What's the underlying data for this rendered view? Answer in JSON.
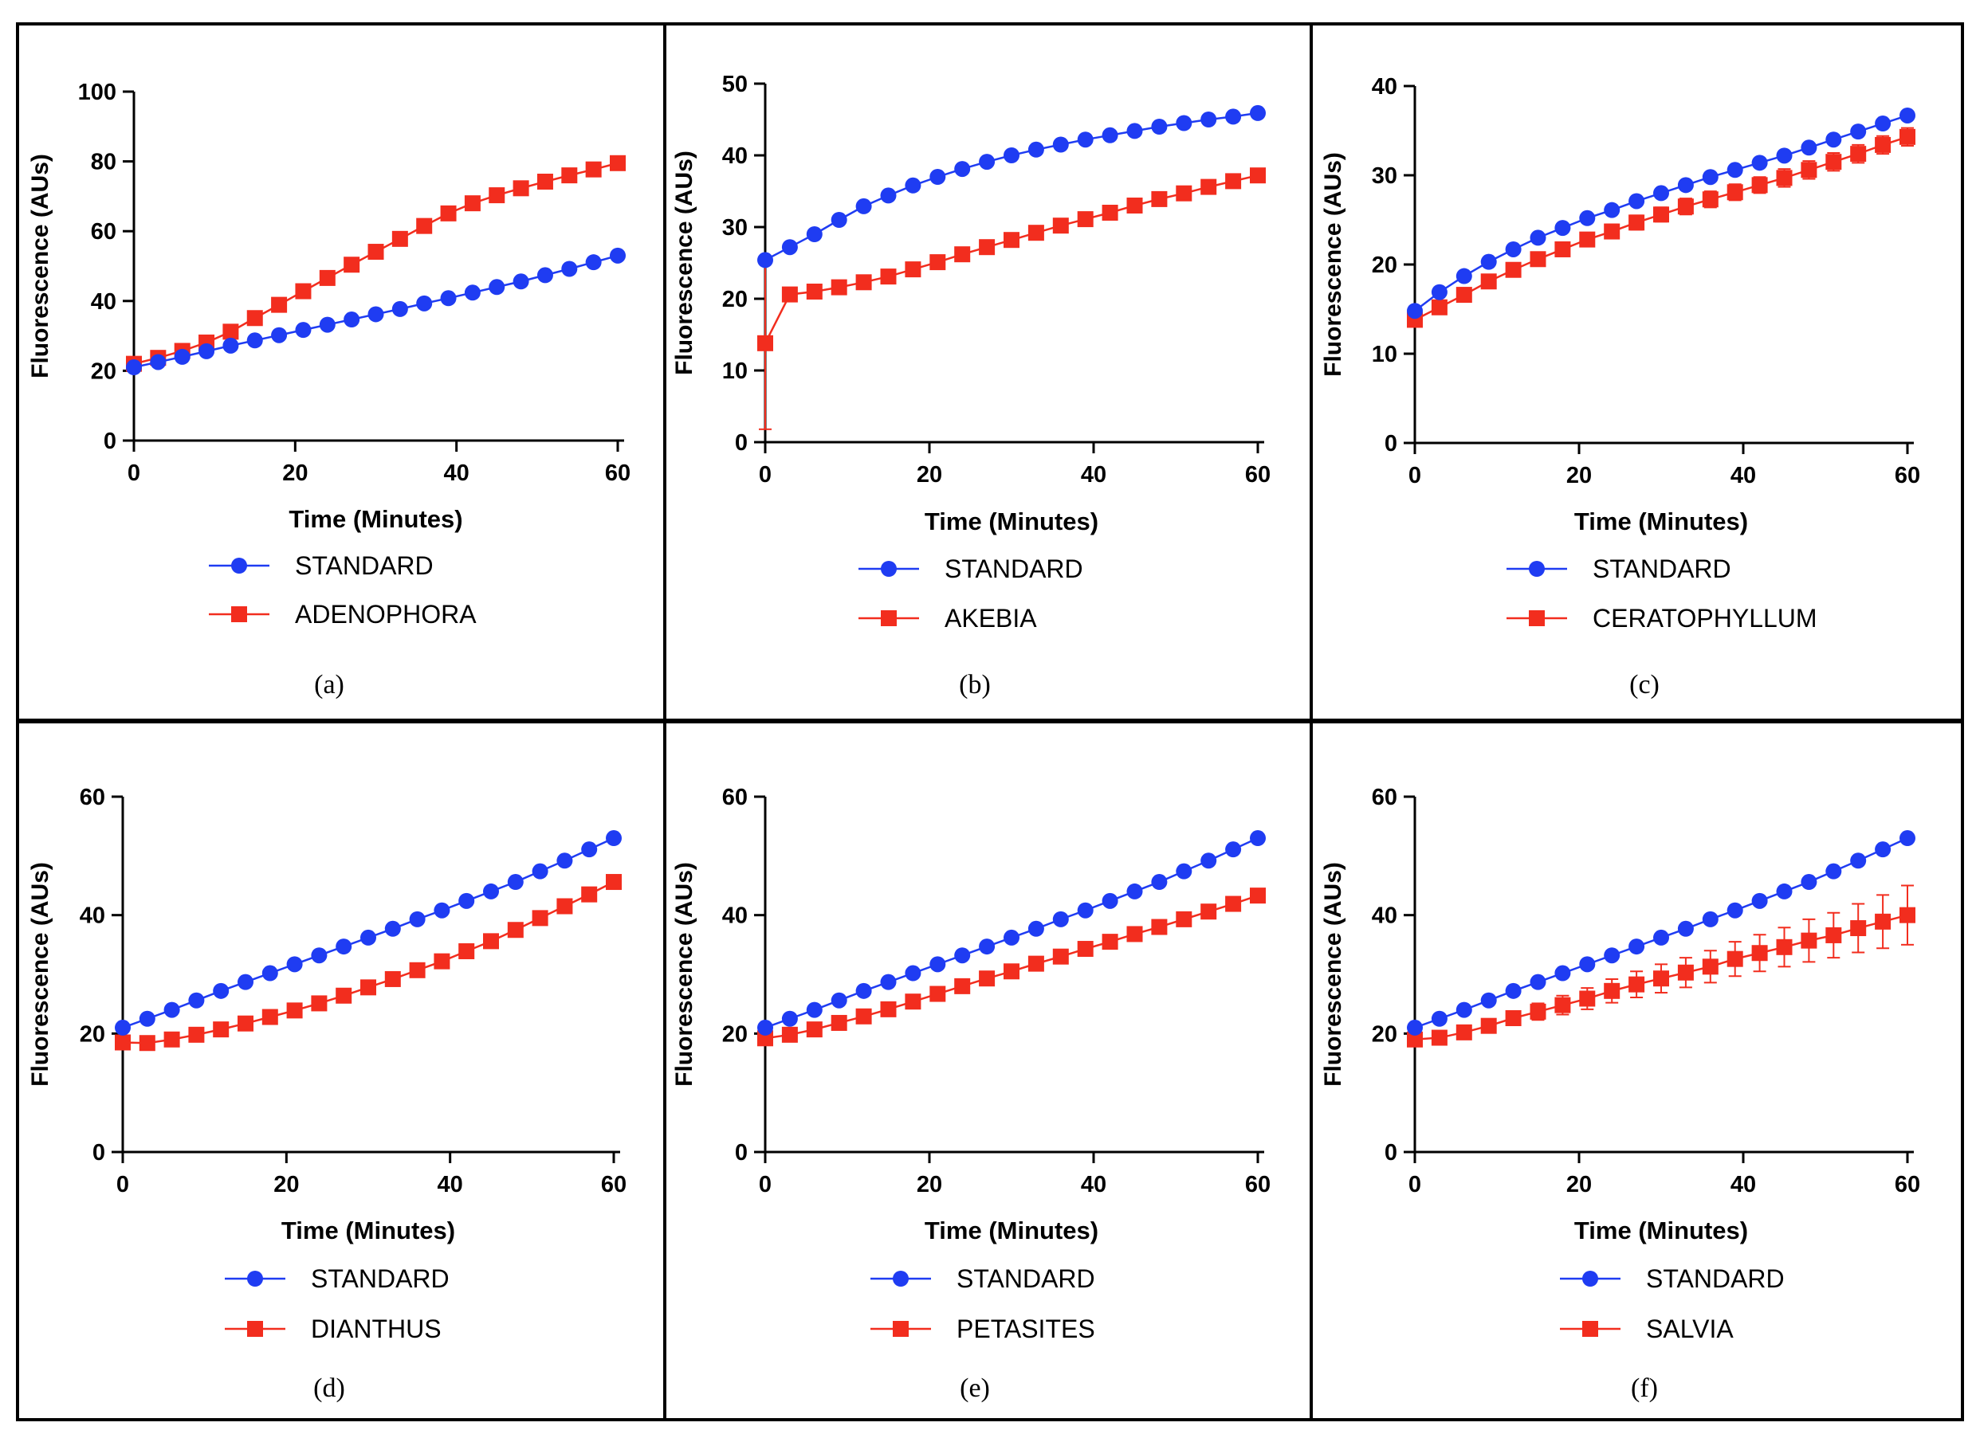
{
  "colors": {
    "standard": "#1f3cf2",
    "sample": "#f22d1e",
    "frame": "#000000"
  },
  "chart_data": [
    {
      "type": "line",
      "panel_label": "(a)",
      "xlabel": "Time (Minutes)",
      "ylabel": "Fluorescence (AUs)",
      "xlim": [
        0,
        60
      ],
      "ylim": [
        0,
        100
      ],
      "xticks": [
        "0",
        "20",
        "40",
        "60"
      ],
      "yticks": [
        "0",
        "20",
        "40",
        "60",
        "80",
        "100"
      ],
      "x": [
        0,
        3,
        6,
        9,
        12,
        15,
        18,
        21,
        24,
        27,
        30,
        33,
        36,
        39,
        42,
        45,
        48,
        51,
        54,
        57,
        60
      ],
      "series": [
        {
          "name": "STANDARD",
          "marker": "circle",
          "color": "#1f3cf2",
          "values": [
            21,
            22.5,
            24,
            25.6,
            27.2,
            28.7,
            30.2,
            31.7,
            33.2,
            34.7,
            36.2,
            37.7,
            39.3,
            40.8,
            42.4,
            44,
            45.6,
            47.4,
            49.2,
            51.1,
            53
          ]
        },
        {
          "name": "ADENOPHORA",
          "marker": "square",
          "color": "#f22d1e",
          "values": [
            22,
            23.7,
            25.7,
            28.1,
            31.2,
            35.1,
            38.9,
            42.8,
            46.6,
            50.4,
            54.1,
            57.8,
            61.5,
            65.1,
            68,
            70.3,
            72.3,
            74.2,
            76,
            77.7,
            79.5
          ]
        }
      ]
    },
    {
      "type": "line",
      "panel_label": "(b)",
      "xlabel": "Time (Minutes)",
      "ylabel": "Fluorescence (AUs)",
      "xlim": [
        0,
        60
      ],
      "ylim": [
        0,
        50
      ],
      "xticks": [
        "0",
        "20",
        "40",
        "60"
      ],
      "yticks": [
        "0",
        "10",
        "20",
        "30",
        "40",
        "50"
      ],
      "x": [
        0,
        3,
        6,
        9,
        12,
        15,
        18,
        21,
        24,
        27,
        30,
        33,
        36,
        39,
        42,
        45,
        48,
        51,
        54,
        57,
        60
      ],
      "series": [
        {
          "name": "STANDARD",
          "marker": "circle",
          "color": "#1f3cf2",
          "values": [
            25.4,
            27.2,
            29,
            31,
            32.9,
            34.4,
            35.8,
            37,
            38.1,
            39.1,
            40,
            40.8,
            41.5,
            42.2,
            42.8,
            43.4,
            44,
            44.5,
            45,
            45.4,
            45.9
          ]
        },
        {
          "name": "AKEBIA",
          "marker": "square",
          "color": "#f22d1e",
          "values": [
            13.8,
            20.6,
            21,
            21.6,
            22.3,
            23.1,
            24.1,
            25.1,
            26.2,
            27.2,
            28.2,
            29.2,
            30.2,
            31.1,
            32,
            33,
            33.9,
            34.7,
            35.6,
            36.4,
            37.2
          ],
          "error": [
            12,
            0,
            0,
            0,
            0,
            0,
            0,
            0,
            0,
            0,
            0,
            0,
            0,
            0,
            0,
            0,
            0,
            0,
            0,
            0,
            0
          ]
        }
      ]
    },
    {
      "type": "line",
      "panel_label": "(c)",
      "xlabel": "Time (Minutes)",
      "ylabel": "Fluorescence (AUs)",
      "xlim": [
        0,
        60
      ],
      "ylim": [
        0,
        40
      ],
      "xticks": [
        "0",
        "20",
        "40",
        "60"
      ],
      "yticks": [
        "0",
        "10",
        "20",
        "30",
        "40"
      ],
      "x": [
        0,
        3,
        6,
        9,
        12,
        15,
        18,
        21,
        24,
        27,
        30,
        33,
        36,
        39,
        42,
        45,
        48,
        51,
        54,
        57,
        60
      ],
      "series": [
        {
          "name": "STANDARD",
          "marker": "circle",
          "color": "#1f3cf2",
          "values": [
            14.8,
            16.9,
            18.7,
            20.3,
            21.7,
            23,
            24.1,
            25.2,
            26.1,
            27.1,
            28,
            28.9,
            29.8,
            30.6,
            31.4,
            32.2,
            33.1,
            34,
            34.9,
            35.8,
            36.7
          ]
        },
        {
          "name": "CERATOPHYLLUM",
          "marker": "square",
          "color": "#f22d1e",
          "values": [
            13.8,
            15.2,
            16.6,
            18.1,
            19.4,
            20.6,
            21.7,
            22.8,
            23.7,
            24.7,
            25.6,
            26.5,
            27.3,
            28.1,
            28.9,
            29.7,
            30.6,
            31.5,
            32.4,
            33.4,
            34.3
          ],
          "error": [
            0.4,
            0.5,
            0.5,
            0.6,
            0.6,
            0.7,
            0.7,
            0.7,
            0.8,
            0.8,
            0.8,
            0.9,
            0.9,
            0.9,
            0.9,
            1,
            1,
            1,
            1,
            1,
            1
          ]
        }
      ]
    },
    {
      "type": "line",
      "panel_label": "(d)",
      "xlabel": "Time (Minutes)",
      "ylabel": "Fluorescence (AUs)",
      "xlim": [
        0,
        60
      ],
      "ylim": [
        0,
        60
      ],
      "xticks": [
        "0",
        "20",
        "40",
        "60"
      ],
      "yticks": [
        "0",
        "20",
        "40",
        "60"
      ],
      "x": [
        0,
        3,
        6,
        9,
        12,
        15,
        18,
        21,
        24,
        27,
        30,
        33,
        36,
        39,
        42,
        45,
        48,
        51,
        54,
        57,
        60
      ],
      "series": [
        {
          "name": "STANDARD",
          "marker": "circle",
          "color": "#1f3cf2",
          "values": [
            21,
            22.5,
            24,
            25.6,
            27.2,
            28.7,
            30.2,
            31.7,
            33.2,
            34.7,
            36.2,
            37.7,
            39.3,
            40.8,
            42.4,
            44,
            45.6,
            47.4,
            49.2,
            51.1,
            53
          ]
        },
        {
          "name": "DIANTHUS",
          "marker": "square",
          "color": "#f22d1e",
          "values": [
            18.5,
            18.4,
            19,
            19.8,
            20.7,
            21.7,
            22.8,
            23.9,
            25.1,
            26.4,
            27.8,
            29.2,
            30.7,
            32.2,
            33.9,
            35.6,
            37.5,
            39.5,
            41.5,
            43.5,
            45.6
          ]
        }
      ]
    },
    {
      "type": "line",
      "panel_label": "(e)",
      "xlabel": "Time (Minutes)",
      "ylabel": "Fluorescence (AUs)",
      "xlim": [
        0,
        60
      ],
      "ylim": [
        0,
        60
      ],
      "xticks": [
        "0",
        "20",
        "40",
        "60"
      ],
      "yticks": [
        "0",
        "20",
        "40",
        "60"
      ],
      "x": [
        0,
        3,
        6,
        9,
        12,
        15,
        18,
        21,
        24,
        27,
        30,
        33,
        36,
        39,
        42,
        45,
        48,
        51,
        54,
        57,
        60
      ],
      "series": [
        {
          "name": "STANDARD",
          "marker": "circle",
          "color": "#1f3cf2",
          "values": [
            21,
            22.5,
            24,
            25.6,
            27.2,
            28.7,
            30.2,
            31.7,
            33.2,
            34.7,
            36.2,
            37.7,
            39.3,
            40.8,
            42.4,
            44,
            45.6,
            47.4,
            49.2,
            51.1,
            53
          ]
        },
        {
          "name": "PETASITES",
          "marker": "square",
          "color": "#f22d1e",
          "values": [
            19.2,
            19.8,
            20.7,
            21.8,
            22.9,
            24.1,
            25.4,
            26.7,
            28,
            29.3,
            30.5,
            31.8,
            33,
            34.3,
            35.5,
            36.8,
            38,
            39.3,
            40.6,
            41.9,
            43.3
          ]
        }
      ]
    },
    {
      "type": "line",
      "panel_label": "(f)",
      "xlabel": "Time (Minutes)",
      "ylabel": "Fluorescence (AUs)",
      "xlim": [
        0,
        60
      ],
      "ylim": [
        0,
        60
      ],
      "xticks": [
        "0",
        "20",
        "40",
        "60"
      ],
      "yticks": [
        "0",
        "20",
        "40",
        "60"
      ],
      "x": [
        0,
        3,
        6,
        9,
        12,
        15,
        18,
        21,
        24,
        27,
        30,
        33,
        36,
        39,
        42,
        45,
        48,
        51,
        54,
        57,
        60
      ],
      "series": [
        {
          "name": "STANDARD",
          "marker": "circle",
          "color": "#1f3cf2",
          "values": [
            21,
            22.5,
            24,
            25.6,
            27.2,
            28.7,
            30.2,
            31.7,
            33.2,
            34.7,
            36.2,
            37.7,
            39.3,
            40.8,
            42.4,
            44,
            45.6,
            47.4,
            49.2,
            51.1,
            53
          ]
        },
        {
          "name": "SALVIA",
          "marker": "square",
          "color": "#f22d1e",
          "values": [
            19,
            19.3,
            20.2,
            21.3,
            22.6,
            23.7,
            24.8,
            25.9,
            27.2,
            28.3,
            29.3,
            30.3,
            31.3,
            32.6,
            33.6,
            34.6,
            35.7,
            36.6,
            37.8,
            38.9,
            40
          ],
          "error": [
            0.4,
            0.6,
            0.8,
            1,
            1.2,
            1.4,
            1.6,
            1.8,
            2,
            2.2,
            2.4,
            2.5,
            2.7,
            2.9,
            3.1,
            3.3,
            3.6,
            3.8,
            4.1,
            4.5,
            5
          ]
        }
      ]
    }
  ]
}
